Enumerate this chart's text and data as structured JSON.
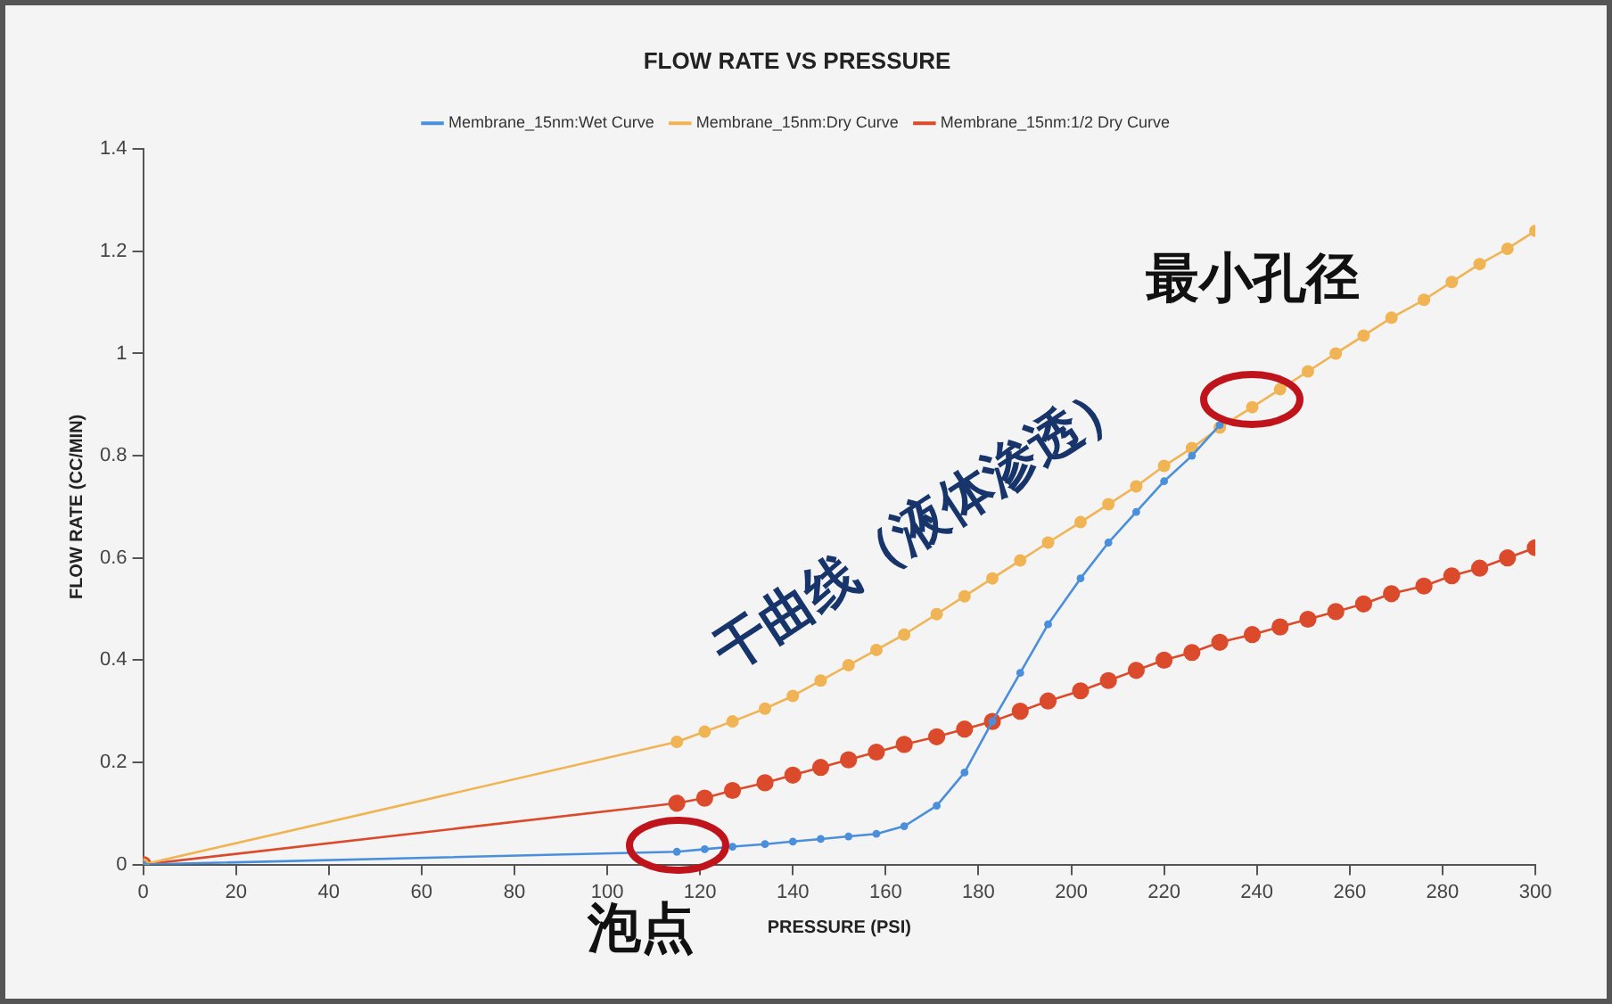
{
  "chart_data": {
    "type": "line",
    "title": "FLOW RATE VS PRESSURE",
    "xlabel": "PRESSURE (PSI)",
    "ylabel": "FLOW RATE (CC/MIN)",
    "x": [
      0,
      115,
      121,
      127,
      134,
      140,
      146,
      152,
      158,
      164,
      171,
      177,
      183,
      189,
      195,
      202,
      208,
      214,
      220,
      226,
      232,
      239,
      245,
      251,
      257,
      263,
      269,
      276,
      282,
      288,
      294,
      300
    ],
    "series": [
      {
        "name": "Membrane_15nm:Wet Curve",
        "color": "#4a8fdc",
        "values": [
          0,
          0.025,
          0.03,
          0.035,
          0.04,
          0.045,
          0.05,
          0.055,
          0.06,
          0.075,
          0.115,
          0.18,
          0.28,
          0.375,
          0.47,
          0.56,
          0.63,
          0.69,
          0.75,
          0.8,
          0.86,
          null,
          null,
          null,
          null,
          null,
          null,
          null,
          null,
          null,
          null,
          null
        ]
      },
      {
        "name": "Membrane_15nm:Dry Curve",
        "color": "#f0b454",
        "values": [
          0,
          0.24,
          0.26,
          0.28,
          0.305,
          0.33,
          0.36,
          0.39,
          0.42,
          0.45,
          0.49,
          0.525,
          0.56,
          0.595,
          0.63,
          0.67,
          0.705,
          0.74,
          0.78,
          0.815,
          0.855,
          0.895,
          0.93,
          0.965,
          1.0,
          1.035,
          1.07,
          1.105,
          1.14,
          1.175,
          1.205,
          1.24
        ]
      },
      {
        "name": "Membrane_15nm:1/2 Dry Curve",
        "color": "#dc4a2c",
        "values": [
          0,
          0.12,
          0.13,
          0.145,
          0.16,
          0.175,
          0.19,
          0.205,
          0.22,
          0.235,
          0.25,
          0.265,
          0.28,
          0.3,
          0.32,
          0.34,
          0.36,
          0.38,
          0.4,
          0.415,
          0.435,
          0.45,
          0.465,
          0.48,
          0.495,
          0.51,
          0.53,
          0.545,
          0.565,
          0.58,
          0.6,
          0.62
        ]
      }
    ],
    "xlim": [
      0,
      300
    ],
    "xticks": [
      0,
      20,
      40,
      60,
      80,
      100,
      120,
      140,
      160,
      180,
      200,
      220,
      240,
      260,
      280,
      300
    ],
    "ylim": [
      0,
      1.4
    ],
    "yticks": [
      0,
      0.2,
      0.4,
      0.6,
      0.8,
      1,
      1.2,
      1.4
    ],
    "grid": false,
    "legend": "top",
    "marker": "circle",
    "line_style": "solid",
    "annotations": [
      {
        "text": "泡点",
        "x": 115,
        "y": 0.025
      },
      {
        "text": "最小孔径",
        "x": 239,
        "y": 0.895
      },
      "干曲线（液体渗透）"
    ]
  }
}
